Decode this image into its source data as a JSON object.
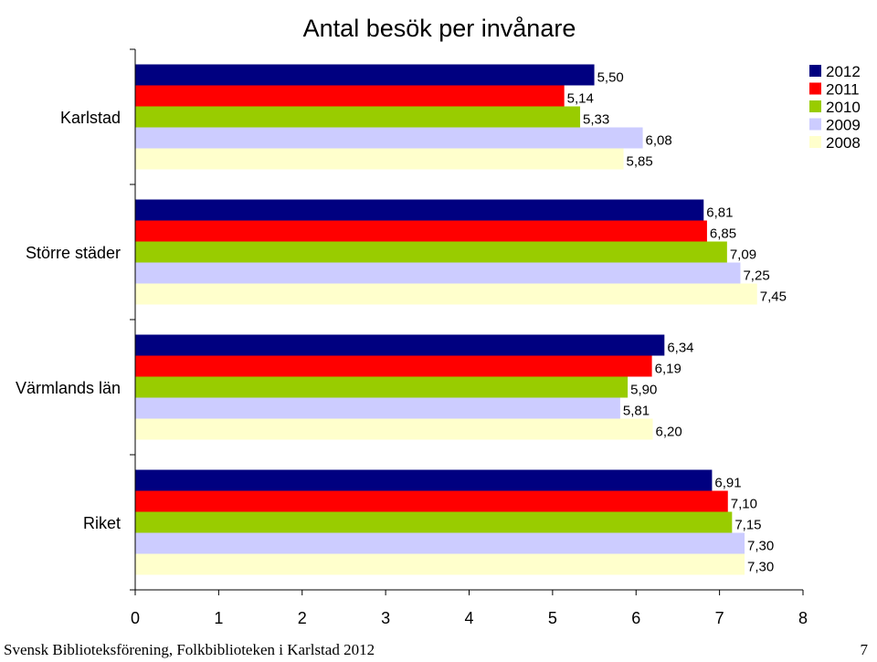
{
  "chart_data": {
    "type": "bar",
    "orientation": "horizontal",
    "title": "Antal besök per invånare",
    "categories": [
      "Karlstad",
      "Större städer",
      "Värmlands län",
      "Riket"
    ],
    "series": [
      {
        "name": "2012",
        "color": "#000080",
        "values": [
          5.5,
          6.81,
          6.34,
          6.91
        ],
        "labels": [
          "5,50",
          "6,81",
          "6,34",
          "6,91"
        ]
      },
      {
        "name": "2011",
        "color": "#ff0000",
        "values": [
          5.14,
          6.85,
          6.19,
          7.1
        ],
        "labels": [
          "5,14",
          "6,85",
          "6,19",
          "7,10"
        ]
      },
      {
        "name": "2010",
        "color": "#99cc00",
        "values": [
          5.33,
          7.09,
          5.9,
          7.15
        ],
        "labels": [
          "5,33",
          "7,09",
          "5,90",
          "7,15"
        ]
      },
      {
        "name": "2009",
        "color": "#ccccff",
        "values": [
          6.08,
          7.25,
          5.81,
          7.3
        ],
        "labels": [
          "6,08",
          "7,25",
          "5,81",
          "7,30"
        ]
      },
      {
        "name": "2008",
        "color": "#ffffcc",
        "values": [
          5.85,
          7.45,
          6.2,
          7.3
        ],
        "labels": [
          "5,85",
          "7,45",
          "6,20",
          "7,30"
        ]
      }
    ],
    "xlim": [
      0,
      8
    ],
    "xticks": [
      "0",
      "1",
      "2",
      "3",
      "4",
      "5",
      "6",
      "7",
      "8"
    ],
    "grid": false,
    "legend_position": "top-right"
  },
  "footer": {
    "text": "Svensk Biblioteksförening, Folkbiblioteken i Karlstad 2012",
    "page": "7"
  }
}
